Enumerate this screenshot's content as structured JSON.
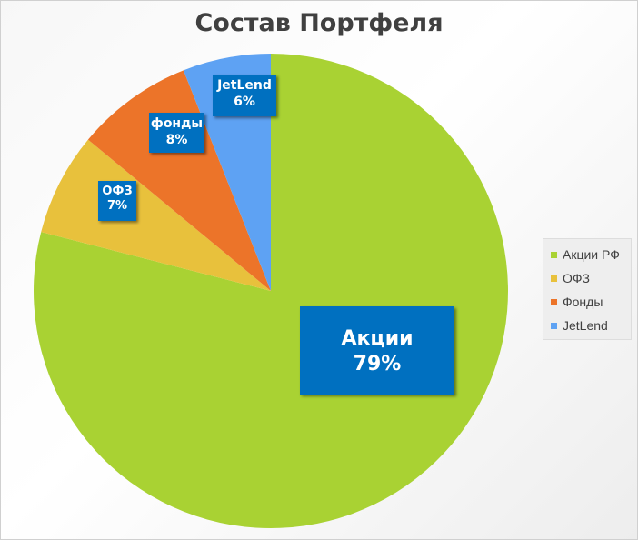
{
  "chart_data": {
    "type": "pie",
    "title": "Состав Портфеля",
    "categories": [
      "Акции РФ",
      "ОФЗ",
      "Фонды",
      "JetLend"
    ],
    "values": [
      79,
      7,
      8,
      6
    ],
    "colors": [
      "#a9d233",
      "#e8c13c",
      "#ec7429",
      "#5ea2f3"
    ],
    "data_labels": [
      {
        "name": "Акции",
        "value": "79%"
      },
      {
        "name": "ОФЗ",
        "value": "7%"
      },
      {
        "name": "фонды",
        "value": "8%"
      },
      {
        "name": "JetLend",
        "value": "6%"
      }
    ],
    "legend_position": "right"
  }
}
